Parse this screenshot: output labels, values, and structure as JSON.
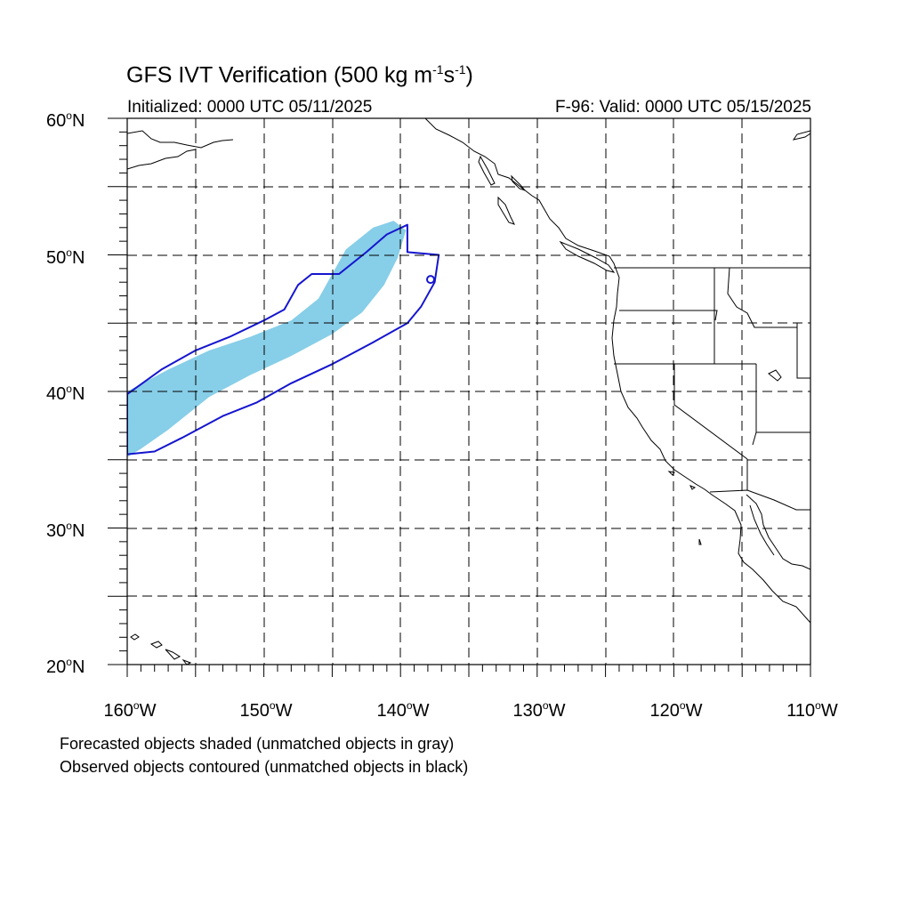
{
  "title": {
    "main": "GFS IVT Verification (500 kg m",
    "exp1": "-1",
    "mid": "s",
    "exp2": "-1",
    "end": ")"
  },
  "init_label": "Initialized: 0000 UTC 05/11/2025",
  "valid_label": "F-96: Valid: 0000 UTC 05/15/2025",
  "lat_labels": [
    "60",
    "50",
    "40",
    "30",
    "20"
  ],
  "lat_suffix": "N",
  "lon_labels": [
    "160",
    "150",
    "140",
    "130",
    "120",
    "110"
  ],
  "lon_suffix": "W",
  "degree_symbol": "o",
  "notes": [
    "Forecasted objects shaded (unmatched objects in gray)",
    "Observed objects contoured (unmatched objects in black)"
  ],
  "colors": {
    "forecast_fill": "#87CEE8",
    "observed_contour": "#1515D0",
    "coastline": "#000000",
    "grid": "#000000"
  },
  "map_extent": {
    "lon_min": -160,
    "lon_max": -110,
    "lat_min": 20,
    "lat_max": 60
  },
  "forecast_object": {
    "description_type": "matched",
    "polygon": [
      [
        -160,
        40.0
      ],
      [
        -157,
        41.6
      ],
      [
        -154,
        43.0
      ],
      [
        -151,
        44.0
      ],
      [
        -148,
        45.2
      ],
      [
        -146,
        46.8
      ],
      [
        -145,
        48.6
      ],
      [
        -144,
        50.4
      ],
      [
        -142,
        52.0
      ],
      [
        -140.5,
        52.5
      ],
      [
        -139.6,
        51.8
      ],
      [
        -140.2,
        49.8
      ],
      [
        -141.2,
        47.8
      ],
      [
        -142.8,
        45.8
      ],
      [
        -145,
        44.2
      ],
      [
        -148,
        42.6
      ],
      [
        -151,
        41.2
      ],
      [
        -154,
        39.6
      ],
      [
        -157,
        37.2
      ],
      [
        -159,
        35.8
      ],
      [
        -160,
        35.2
      ]
    ]
  },
  "observed_object": {
    "description_type": "matched",
    "polygon": [
      [
        -160,
        39.8
      ],
      [
        -157.5,
        41.6
      ],
      [
        -155,
        43.0
      ],
      [
        -152.5,
        44.0
      ],
      [
        -150,
        45.2
      ],
      [
        -148.5,
        46.0
      ],
      [
        -147.5,
        47.8
      ],
      [
        -146.5,
        48.6
      ],
      [
        -144.5,
        48.6
      ],
      [
        -142.5,
        50.2
      ],
      [
        -141,
        51.5
      ],
      [
        -139.5,
        52.2
      ],
      [
        -139.5,
        50.2
      ],
      [
        -137.2,
        50.0
      ],
      [
        -137.5,
        48.0
      ],
      [
        -138.5,
        46.2
      ],
      [
        -139.5,
        45.0
      ],
      [
        -142,
        43.6
      ],
      [
        -145,
        42.0
      ],
      [
        -148,
        40.6
      ],
      [
        -150.5,
        39.2
      ],
      [
        -153,
        38.2
      ],
      [
        -156,
        36.6
      ],
      [
        -158,
        35.6
      ],
      [
        -160,
        35.4
      ]
    ]
  }
}
